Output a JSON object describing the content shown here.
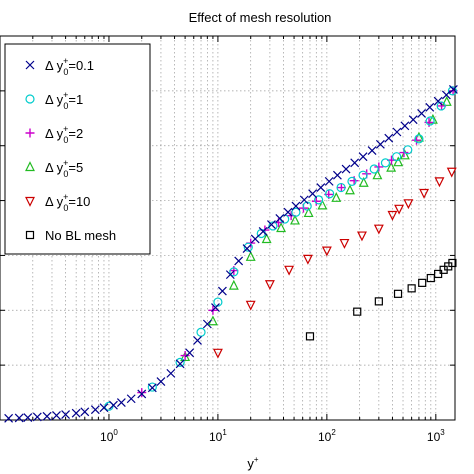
{
  "chart_data": {
    "type": "scatter",
    "title": "Effect of mesh resolution",
    "xlabel": "y",
    "xlabel_superscript": "+",
    "ylabel": "",
    "xscale": "log",
    "xlim": [
      0.1,
      1500
    ],
    "ylim": [
      0,
      28
    ],
    "grid": true,
    "legend_position": "top-left",
    "x_ticks": [
      {
        "value": 1,
        "base": "10",
        "exp": "0"
      },
      {
        "value": 10,
        "base": "10",
        "exp": "1"
      },
      {
        "value": 100,
        "base": "10",
        "exp": "2"
      },
      {
        "value": 1000,
        "base": "10",
        "exp": "3"
      }
    ],
    "series": [
      {
        "name_prefix": "Δ y",
        "name_sup": "+",
        "name_sub": "0",
        "name_suffix": "=0.1",
        "marker": "x",
        "color": "#00008B",
        "x": [
          0.12,
          0.15,
          0.18,
          0.22,
          0.27,
          0.33,
          0.4,
          0.5,
          0.6,
          0.75,
          0.9,
          1.1,
          1.3,
          1.6,
          2.0,
          2.5,
          3.0,
          3.7,
          4.5,
          5.5,
          6.5,
          8,
          9.5,
          11,
          13,
          15.5,
          18.5,
          22,
          26,
          31,
          37,
          44,
          52,
          62,
          74,
          88,
          105,
          125,
          150,
          180,
          215,
          260,
          310,
          370,
          440,
          520,
          620,
          740,
          880,
          1050,
          1250,
          1450
        ],
        "y": [
          0.12,
          0.15,
          0.18,
          0.22,
          0.27,
          0.33,
          0.4,
          0.5,
          0.6,
          0.75,
          0.9,
          1.08,
          1.27,
          1.55,
          1.9,
          2.35,
          2.8,
          3.4,
          4.1,
          4.9,
          5.8,
          7.0,
          8.2,
          9.4,
          10.6,
          11.6,
          12.5,
          13.2,
          13.75,
          14.25,
          14.7,
          15.15,
          15.6,
          16.05,
          16.5,
          16.95,
          17.4,
          17.85,
          18.3,
          18.75,
          19.2,
          19.65,
          20.1,
          20.55,
          21.0,
          21.45,
          21.9,
          22.35,
          22.8,
          23.25,
          23.7,
          24.1
        ]
      },
      {
        "name_prefix": "Δ y",
        "name_sup": "+",
        "name_sub": "0",
        "name_suffix": "=1",
        "marker": "circle",
        "color": "#00CCCC",
        "x": [
          1.0,
          2.5,
          4.5,
          7,
          10,
          14,
          19,
          25,
          32,
          41,
          52,
          66,
          84,
          106,
          135,
          170,
          215,
          272,
          345,
          437,
          553,
          700,
          887,
          1120,
          1420
        ],
        "y": [
          1.0,
          2.4,
          4.2,
          6.4,
          8.6,
          10.8,
          12.6,
          13.6,
          14.15,
          14.65,
          15.15,
          15.6,
          16.05,
          16.5,
          16.95,
          17.4,
          17.85,
          18.3,
          18.75,
          19.2,
          19.7,
          20.5,
          21.8,
          22.9,
          24.0
        ]
      },
      {
        "name_prefix": "Δ y",
        "name_sup": "+",
        "name_sub": "0",
        "name_suffix": "=2",
        "marker": "plus",
        "color": "#CC00CC",
        "x": [
          2,
          5,
          9,
          14,
          20,
          27,
          36,
          47,
          61,
          80,
          104,
          136,
          178,
          232,
          300,
          392,
          510,
          665,
          866,
          1130,
          1440
        ],
        "y": [
          2.0,
          4.7,
          8.0,
          10.9,
          12.9,
          13.85,
          14.4,
          14.9,
          15.45,
          15.95,
          16.45,
          16.95,
          17.45,
          17.95,
          18.45,
          18.95,
          19.5,
          20.4,
          21.7,
          22.9,
          24.0
        ]
      },
      {
        "name_prefix": "Δ y",
        "name_sup": "+",
        "name_sub": "0",
        "name_suffix": "=5",
        "marker": "triangle-up",
        "color": "#22BB22",
        "x": [
          5,
          9,
          14,
          20,
          28,
          38,
          51,
          68,
          91,
          122,
          163,
          218,
          291,
          389,
          452,
          520,
          700,
          940,
          1260
        ],
        "y": [
          4.6,
          7.2,
          9.8,
          11.9,
          13.2,
          14.0,
          14.55,
          15.1,
          15.65,
          16.2,
          16.75,
          17.3,
          17.85,
          18.4,
          18.8,
          19.3,
          20.6,
          21.9,
          23.2
        ]
      },
      {
        "name_prefix": "Δ y",
        "name_sup": "+",
        "name_sub": "0",
        "name_suffix": "=10",
        "marker": "triangle-down",
        "color": "#CC0000",
        "x": [
          10,
          20,
          30,
          45,
          67,
          100,
          145,
          210,
          300,
          400,
          460,
          560,
          780,
          1080,
          1400
        ],
        "y": [
          4.9,
          8.4,
          9.9,
          10.95,
          11.75,
          12.35,
          12.9,
          13.45,
          13.95,
          14.95,
          15.4,
          15.8,
          16.55,
          17.4,
          18.1
        ]
      },
      {
        "name_prefix": "No BL mesh",
        "name_sup": "",
        "name_sub": "",
        "name_suffix": "",
        "marker": "square",
        "color": "#000000",
        "x": [
          70,
          190,
          300,
          450,
          600,
          750,
          900,
          1050,
          1180,
          1300,
          1420
        ],
        "y": [
          6.1,
          7.9,
          8.65,
          9.2,
          9.6,
          10.0,
          10.35,
          10.65,
          10.95,
          11.2,
          11.45
        ]
      }
    ]
  }
}
